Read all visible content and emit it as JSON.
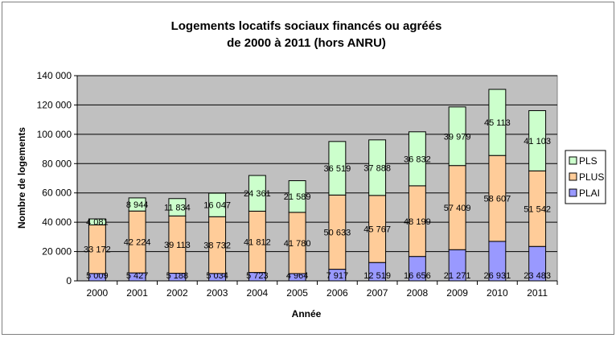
{
  "chart_data": {
    "type": "bar",
    "stacked": true,
    "title_lines": [
      "Logements locatifs sociaux financés ou agréés",
      "de 2000 à 2011 (hors ANRU)"
    ],
    "xlabel": "Année",
    "ylabel": "Nombre de logements",
    "ylim": [
      0,
      140000
    ],
    "yticks": [
      0,
      20000,
      40000,
      60000,
      80000,
      100000,
      120000,
      140000
    ],
    "ytick_labels": [
      "0",
      "20 000",
      "40 000",
      "60 000",
      "80 000",
      "100 000",
      "120 000",
      "140 000"
    ],
    "grid": true,
    "legend_position": "right",
    "plot_background": "#c0c0c0",
    "categories": [
      "2000",
      "2001",
      "2002",
      "2003",
      "2004",
      "2005",
      "2006",
      "2007",
      "2008",
      "2009",
      "2010",
      "2011"
    ],
    "series": [
      {
        "name": "PLAI",
        "color": "#9999ff",
        "values": [
          5009,
          5427,
          5188,
          5034,
          5723,
          4964,
          7917,
          12519,
          16656,
          21271,
          26931,
          23483
        ],
        "labels": [
          "5 009",
          "5 427",
          "5 188",
          "5 034",
          "5 723",
          "4 964",
          "7 917",
          "12 519",
          "16 656",
          "21 271",
          "26 931",
          "23 483"
        ]
      },
      {
        "name": "PLUS",
        "color": "#ffcc99",
        "values": [
          33172,
          42224,
          39113,
          38732,
          41812,
          41780,
          50633,
          45767,
          48199,
          57409,
          58607,
          51542
        ],
        "labels": [
          "33 172",
          "42 224",
          "39 113",
          "38 732",
          "41 812",
          "41 780",
          "50 633",
          "45 767",
          "48 199",
          "57 409",
          "58 607",
          "51 542"
        ]
      },
      {
        "name": "PLS",
        "color": "#ccffcc",
        "values": [
          4081,
          8944,
          11834,
          16047,
          24361,
          21589,
          36519,
          37888,
          36832,
          39979,
          45113,
          41103
        ],
        "labels": [
          "4 081",
          "8 944",
          "11 834",
          "16 047",
          "24 361",
          "21 589",
          "36 519",
          "37 888",
          "36 832",
          "39 979",
          "45 113",
          "41 103"
        ]
      }
    ],
    "legend_order": [
      "PLS",
      "PLUS",
      "PLAI"
    ]
  }
}
